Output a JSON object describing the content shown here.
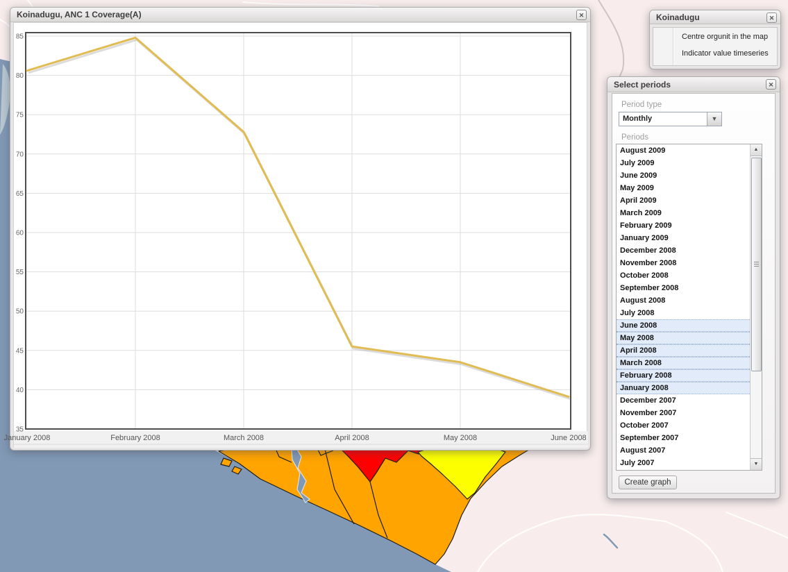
{
  "chart_window": {
    "title": "Koinadugu, ANC 1 Coverage(A)"
  },
  "chart_data": {
    "type": "line",
    "title": "Koinadugu, ANC 1 Coverage(A)",
    "categories": [
      "January 2008",
      "February 2008",
      "March 2008",
      "April 2008",
      "May 2008",
      "June 2008"
    ],
    "values": [
      80.6,
      84.8,
      72.8,
      45.5,
      43.5,
      39.1
    ],
    "xlabel": "",
    "ylabel": "",
    "ylim": [
      35,
      85
    ],
    "ytick_step": 5,
    "grid": true,
    "legend": "none",
    "line_color": "#E0BC52"
  },
  "orgunit_panel": {
    "title": "Koinadugu",
    "menu_items": [
      "Centre orgunit in the map",
      "Indicator value timeseries"
    ]
  },
  "periods_panel": {
    "title": "Select periods",
    "period_type_label": "Period type",
    "period_type_value": "Monthly",
    "periods_label": "Periods",
    "create_button": "Create graph",
    "periods": [
      {
        "label": "August 2009",
        "selected": false
      },
      {
        "label": "July 2009",
        "selected": false
      },
      {
        "label": "June 2009",
        "selected": false
      },
      {
        "label": "May 2009",
        "selected": false
      },
      {
        "label": "April 2009",
        "selected": false
      },
      {
        "label": "March 2009",
        "selected": false
      },
      {
        "label": "February 2009",
        "selected": false
      },
      {
        "label": "January 2009",
        "selected": false
      },
      {
        "label": "December 2008",
        "selected": false
      },
      {
        "label": "November 2008",
        "selected": false
      },
      {
        "label": "October 2008",
        "selected": false
      },
      {
        "label": "September 2008",
        "selected": false
      },
      {
        "label": "August 2008",
        "selected": false
      },
      {
        "label": "July 2008",
        "selected": false
      },
      {
        "label": "June 2008",
        "selected": true
      },
      {
        "label": "May 2008",
        "selected": true
      },
      {
        "label": "April 2008",
        "selected": true
      },
      {
        "label": "March 2008",
        "selected": true
      },
      {
        "label": "February 2008",
        "selected": true
      },
      {
        "label": "January 2008",
        "selected": true
      },
      {
        "label": "December 2007",
        "selected": false
      },
      {
        "label": "November 2007",
        "selected": false
      },
      {
        "label": "October 2007",
        "selected": false
      },
      {
        "label": "September 2007",
        "selected": false
      },
      {
        "label": "August 2007",
        "selected": false
      },
      {
        "label": "July 2007",
        "selected": false
      }
    ]
  },
  "icons": {
    "close": "✕",
    "dropdown_arrow": "▼",
    "scroll_up": "▲",
    "scroll_down": "▼"
  },
  "colors": {
    "sea": "#8199B4",
    "land": "#F8EDEC",
    "district_orange": "#FFA400",
    "district_red": "#FE0000",
    "district_yellow": "#FDFF00",
    "selection_bg": "#E1EBFA",
    "selection_border": "#93ADD1",
    "admin_line": "#FFFFFF"
  }
}
